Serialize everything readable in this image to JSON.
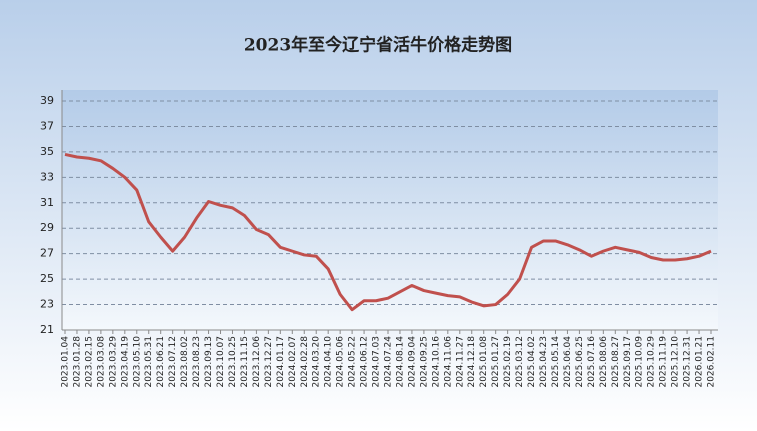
{
  "chart_data": {
    "type": "line",
    "title": "2023年至今辽宁省活牛价格走势图",
    "categories": [
      "2023.01.04",
      "2023.01.28",
      "2023.02.15",
      "2023.03.08",
      "2023.03.29",
      "2023.04.19",
      "2023.05.10",
      "2023.05.31",
      "2023.06.21",
      "2023.07.12",
      "2023.08.02",
      "2023.08.23",
      "2023.09.13",
      "2023.10.07",
      "2023.10.25",
      "2023.11.15",
      "2023.12.06",
      "2023.12.27",
      "2024.01.17",
      "2024.02.07",
      "2024.02.28",
      "2024.03.20",
      "2024.04.10",
      "2024.05.06",
      "2024.05.22",
      "2024.06.12",
      "2024.07.03",
      "2024.07.24",
      "2024.08.14",
      "2024.09.04",
      "2024.09.25",
      "2024.10.16",
      "2024.11.06",
      "2024.11.27",
      "2024.12.18",
      "2025.01.08",
      "2025.01.27",
      "2025.02.19",
      "2025.03.12",
      "2025.04.02",
      "2025.04.23",
      "2025.05.14",
      "2025.06.04",
      "2025.06.25",
      "2025.07.16",
      "2025.08.06",
      "2025.08.27",
      "2025.09.17",
      "2025.10.09",
      "2025.10.29",
      "2025.11.19",
      "2025.12.10",
      "2025.12.31",
      "2026.01.21",
      "2026.02.11"
    ],
    "values": [
      34.8,
      34.6,
      34.5,
      34.3,
      33.7,
      33.0,
      32.0,
      29.5,
      28.3,
      27.2,
      28.3,
      29.8,
      31.1,
      30.8,
      30.6,
      30.0,
      28.9,
      28.5,
      27.5,
      27.2,
      26.9,
      26.8,
      25.8,
      23.8,
      22.6,
      23.3,
      23.3,
      23.5,
      24.0,
      24.5,
      24.1,
      23.9,
      23.7,
      23.6,
      23.2,
      22.9,
      23.0,
      23.8,
      25.0,
      27.5,
      28.0,
      28.0,
      27.7,
      27.3,
      26.8,
      27.2,
      27.5,
      27.3,
      27.1,
      26.7,
      26.5,
      26.5,
      26.6,
      26.8,
      27.2
    ],
    "color": "#c0504d",
    "ylim": [
      21,
      39
    ],
    "yticks": [
      21,
      23,
      25,
      27,
      29,
      31,
      33,
      35,
      37,
      39
    ],
    "grid": true
  }
}
